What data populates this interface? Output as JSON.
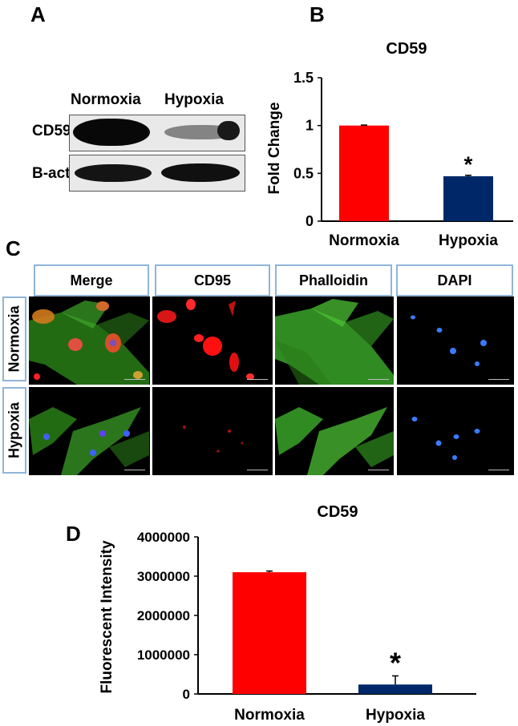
{
  "panels": {
    "a": "A",
    "b": "B",
    "c": "C",
    "d": "D"
  },
  "western_blot": {
    "lanes": [
      "Normoxia",
      "Hypoxia"
    ],
    "rows": [
      "CD59",
      "B-actin"
    ]
  },
  "microscopy": {
    "columns": [
      "Merge",
      "CD95",
      "Phalloidin",
      "DAPI"
    ],
    "rows": [
      "Normoxia",
      "Hypoxia"
    ]
  },
  "colors": {
    "normoxia": "#ff0000",
    "hypoxia": "#002868",
    "frame_border": "#8fb5d9"
  },
  "chart_data": [
    {
      "id": "B",
      "type": "bar",
      "title": "CD59",
      "xlabel": "",
      "ylabel": "Fold Change",
      "categories": [
        "Normoxia",
        "Hypoxia"
      ],
      "values": [
        1.0,
        0.47
      ],
      "errors": [
        0.005,
        0.01
      ],
      "bar_colors": [
        "#ff0000",
        "#002868"
      ],
      "annotations": [
        "",
        "*"
      ],
      "ylim": [
        0,
        1.5
      ],
      "yticks": [
        0,
        0.5,
        1,
        1.5
      ],
      "ytick_labels": [
        "0",
        "0.5",
        "1",
        "1.5"
      ],
      "grid": false
    },
    {
      "id": "D",
      "type": "bar",
      "title": "CD59",
      "xlabel": "",
      "ylabel": "Fluorescent Intensity",
      "categories": [
        "Normoxia",
        "Hypoxia"
      ],
      "values": [
        3100000,
        240000
      ],
      "errors": [
        30000,
        220000
      ],
      "bar_colors": [
        "#ff0000",
        "#002868"
      ],
      "annotations": [
        "",
        "*"
      ],
      "ylim": [
        0,
        4000000
      ],
      "yticks": [
        0,
        1000000,
        2000000,
        3000000,
        4000000
      ],
      "ytick_labels": [
        "0",
        "1000000",
        "2000000",
        "3000000",
        "4000000"
      ],
      "grid": false
    }
  ]
}
